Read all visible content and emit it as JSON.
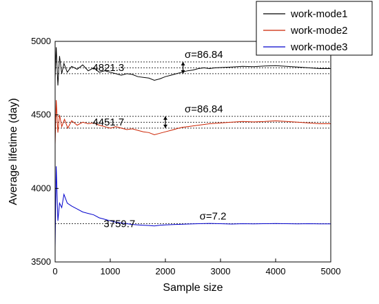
{
  "chart_data": {
    "type": "line",
    "xlabel": "Sample size",
    "ylabel": "Average lifetime (day)",
    "xlim": [
      0,
      5000
    ],
    "ylim": [
      3500,
      5000
    ],
    "xticks": [
      0,
      1000,
      2000,
      3000,
      4000,
      5000
    ],
    "yticks": [
      3500,
      4000,
      4500,
      5000
    ],
    "legend_position": "top-right",
    "series": [
      {
        "name": "work-mode1",
        "color": "#000000",
        "mean_label": "4821.3",
        "sigma_label": "σ=86.84",
        "reference_lines": [
          4860,
          4820,
          4780
        ],
        "points": [
          [
            0,
            4750
          ],
          [
            20,
            4960
          ],
          [
            50,
            4700
          ],
          [
            80,
            4900
          ],
          [
            120,
            4780
          ],
          [
            160,
            4850
          ],
          [
            220,
            4790
          ],
          [
            300,
            4830
          ],
          [
            400,
            4810
          ],
          [
            500,
            4840
          ],
          [
            600,
            4800
          ],
          [
            700,
            4820
          ],
          [
            800,
            4790
          ],
          [
            900,
            4800
          ],
          [
            1000,
            4790
          ],
          [
            1100,
            4780
          ],
          [
            1200,
            4770
          ],
          [
            1300,
            4780
          ],
          [
            1400,
            4775
          ],
          [
            1500,
            4760
          ],
          [
            1600,
            4755
          ],
          [
            1700,
            4750
          ],
          [
            1800,
            4735
          ],
          [
            1900,
            4745
          ],
          [
            2000,
            4760
          ],
          [
            2100,
            4770
          ],
          [
            2200,
            4780
          ],
          [
            2300,
            4790
          ],
          [
            2400,
            4800
          ],
          [
            2500,
            4805
          ],
          [
            2600,
            4815
          ],
          [
            2700,
            4820
          ],
          [
            2800,
            4815
          ],
          [
            2900,
            4820
          ],
          [
            3000,
            4822
          ],
          [
            3200,
            4825
          ],
          [
            3400,
            4830
          ],
          [
            3600,
            4828
          ],
          [
            3800,
            4832
          ],
          [
            4000,
            4835
          ],
          [
            4200,
            4830
          ],
          [
            4400,
            4825
          ],
          [
            4600,
            4820
          ],
          [
            4800,
            4815
          ],
          [
            5000,
            4815
          ]
        ]
      },
      {
        "name": "work-mode2",
        "color": "#cc2200",
        "mean_label": "4451.7",
        "sigma_label": "σ=86.84",
        "reference_lines": [
          4490,
          4450,
          4410
        ],
        "points": [
          [
            0,
            4300
          ],
          [
            20,
            4600
          ],
          [
            50,
            4380
          ],
          [
            80,
            4500
          ],
          [
            120,
            4420
          ],
          [
            170,
            4470
          ],
          [
            230,
            4410
          ],
          [
            300,
            4460
          ],
          [
            400,
            4430
          ],
          [
            500,
            4450
          ],
          [
            600,
            4440
          ],
          [
            700,
            4445
          ],
          [
            800,
            4430
          ],
          [
            900,
            4420
          ],
          [
            1000,
            4410
          ],
          [
            1100,
            4420
          ],
          [
            1200,
            4410
          ],
          [
            1300,
            4400
          ],
          [
            1400,
            4405
          ],
          [
            1500,
            4395
          ],
          [
            1600,
            4385
          ],
          [
            1700,
            4380
          ],
          [
            1800,
            4365
          ],
          [
            1900,
            4375
          ],
          [
            2000,
            4385
          ],
          [
            2100,
            4395
          ],
          [
            2200,
            4405
          ],
          [
            2300,
            4415
          ],
          [
            2400,
            4420
          ],
          [
            2600,
            4430
          ],
          [
            2800,
            4440
          ],
          [
            3000,
            4445
          ],
          [
            3200,
            4450
          ],
          [
            3400,
            4455
          ],
          [
            3600,
            4452
          ],
          [
            3800,
            4455
          ],
          [
            4000,
            4460
          ],
          [
            4200,
            4455
          ],
          [
            4400,
            4450
          ],
          [
            4600,
            4445
          ],
          [
            4800,
            4440
          ],
          [
            5000,
            4440
          ]
        ]
      },
      {
        "name": "work-mode3",
        "color": "#0000cc",
        "mean_label": "3759.7",
        "sigma_label": "σ=7.2",
        "reference_lines": [
          3760
        ],
        "points": [
          [
            0,
            3600
          ],
          [
            20,
            4150
          ],
          [
            50,
            3780
          ],
          [
            80,
            3900
          ],
          [
            120,
            3870
          ],
          [
            160,
            3960
          ],
          [
            220,
            3900
          ],
          [
            300,
            3880
          ],
          [
            400,
            3860
          ],
          [
            500,
            3840
          ],
          [
            600,
            3830
          ],
          [
            700,
            3820
          ],
          [
            800,
            3800
          ],
          [
            900,
            3790
          ],
          [
            1000,
            3780
          ],
          [
            1100,
            3770
          ],
          [
            1200,
            3765
          ],
          [
            1300,
            3760
          ],
          [
            1400,
            3755
          ],
          [
            1500,
            3752
          ],
          [
            1600,
            3750
          ],
          [
            1700,
            3748
          ],
          [
            1800,
            3745
          ],
          [
            1900,
            3750
          ],
          [
            2000,
            3752
          ],
          [
            2200,
            3755
          ],
          [
            2400,
            3758
          ],
          [
            2600,
            3760
          ],
          [
            2800,
            3762
          ],
          [
            3000,
            3760
          ],
          [
            3200,
            3758
          ],
          [
            3400,
            3760
          ],
          [
            3600,
            3759
          ],
          [
            3800,
            3760
          ],
          [
            4000,
            3761
          ],
          [
            4200,
            3760
          ],
          [
            4400,
            3759
          ],
          [
            4600,
            3760
          ],
          [
            4800,
            3759
          ],
          [
            5000,
            3759
          ]
        ]
      }
    ]
  }
}
